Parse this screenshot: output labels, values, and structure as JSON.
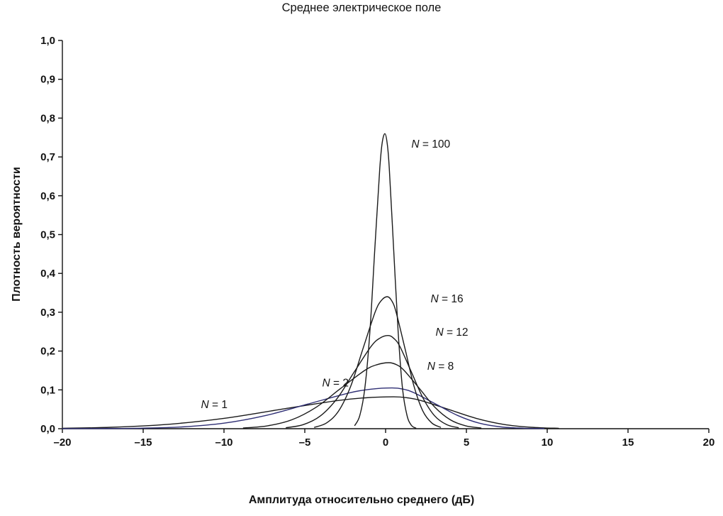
{
  "chart_data": {
    "type": "line",
    "title": "Среднее электрическое поле",
    "xlabel": "Амплитуда относительно среднего (дБ)",
    "ylabel": "Плотность вероятности",
    "xlim": [
      -20,
      20
    ],
    "ylim": [
      0,
      1.0
    ],
    "grid": false,
    "legend_position": "none",
    "axis_color": "#111111",
    "x_ticks": [
      -20,
      -15,
      -10,
      -5,
      0,
      5,
      10,
      15,
      20
    ],
    "x_tick_labels": [
      "–20",
      "–15",
      "–10",
      "–5",
      "0",
      "5",
      "10",
      "15",
      "20"
    ],
    "y_ticks": [
      0,
      0.1,
      0.2,
      0.3,
      0.4,
      0.5,
      0.6,
      0.7,
      0.8,
      0.9,
      1.0
    ],
    "y_tick_labels": [
      "0,0",
      "0,1",
      "0,2",
      "0,3",
      "0,4",
      "0,5",
      "0,6",
      "0,7",
      "0,8",
      "0,9",
      "1,0"
    ],
    "series": [
      {
        "n": "1",
        "label_prefix": "N",
        "label_eq": " = 1",
        "label_x": -10.6,
        "label_y": 0.062,
        "color": "#1a1a1a",
        "peak": 0.082,
        "points": [
          [
            -20,
            0.0011
          ],
          [
            -17,
            0.0036
          ],
          [
            -13.5,
            0.0111
          ],
          [
            -10,
            0.0266
          ],
          [
            -6.5,
            0.0497
          ],
          [
            -3,
            0.0724
          ],
          [
            -1.25,
            0.0795
          ],
          [
            0.5,
            0.082
          ],
          [
            1.35,
            0.0795
          ],
          [
            2.2,
            0.0724
          ],
          [
            3.9,
            0.0497
          ],
          [
            5.6,
            0.0266
          ],
          [
            7.3,
            0.0111
          ],
          [
            9,
            0.0036
          ],
          [
            10.7,
            0.0011
          ]
        ]
      },
      {
        "n": "2",
        "label_prefix": "N",
        "label_eq": " = 2",
        "label_x": -3.1,
        "label_y": 0.118,
        "color": "#2e2e74",
        "peak": 0.105,
        "points": [
          [
            -20,
            0.0001
          ],
          [
            -17.8,
            0.0004
          ],
          [
            -15.2,
            0.0012
          ],
          [
            -12.6,
            0.0046
          ],
          [
            -10,
            0.0142
          ],
          [
            -7.4,
            0.0341
          ],
          [
            -4.8,
            0.0637
          ],
          [
            -2.2,
            0.0927
          ],
          [
            -0.9,
            0.1018
          ],
          [
            0.4,
            0.105
          ],
          [
            1.1,
            0.1018
          ],
          [
            1.75,
            0.0927
          ],
          [
            3.1,
            0.0637
          ],
          [
            4.45,
            0.0341
          ],
          [
            5.8,
            0.0142
          ],
          [
            7.15,
            0.0046
          ],
          [
            8.5,
            0.0012
          ],
          [
            9.8,
            0.0003
          ]
        ]
      },
      {
        "n": "8",
        "label_prefix": "N",
        "label_eq": " = 8",
        "label_x": 3.4,
        "label_y": 0.161,
        "color": "#1a1a1a",
        "peak": 0.17,
        "points": [
          [
            -8.8,
            0.0019
          ],
          [
            -7.3,
            0.0075
          ],
          [
            -5.8,
            0.023
          ],
          [
            -4.3,
            0.0552
          ],
          [
            -2.8,
            0.1031
          ],
          [
            -1.3,
            0.15
          ],
          [
            -0.55,
            0.1648
          ],
          [
            0.2,
            0.17
          ],
          [
            0.68,
            0.1648
          ],
          [
            1.15,
            0.15
          ],
          [
            2.1,
            0.1031
          ],
          [
            3.05,
            0.0552
          ],
          [
            4,
            0.023
          ],
          [
            4.95,
            0.0075
          ],
          [
            5.9,
            0.0019
          ]
        ]
      },
      {
        "n": "12",
        "label_prefix": "N",
        "label_eq": " = 12",
        "label_x": 4.1,
        "label_y": 0.249,
        "color": "#1a1a1a",
        "peak": 0.24,
        "points": [
          [
            -6.15,
            0.0026
          ],
          [
            -5.1,
            0.0105
          ],
          [
            -4.05,
            0.0325
          ],
          [
            -3,
            0.0779
          ],
          [
            -1.95,
            0.1456
          ],
          [
            -0.9,
            0.2118
          ],
          [
            -0.38,
            0.2326
          ],
          [
            0.15,
            0.24
          ],
          [
            0.51,
            0.2326
          ],
          [
            0.88,
            0.2118
          ],
          [
            1.6,
            0.1456
          ],
          [
            2.33,
            0.0779
          ],
          [
            3.05,
            0.0325
          ],
          [
            3.78,
            0.0105
          ],
          [
            4.5,
            0.0026
          ]
        ]
      },
      {
        "n": "16",
        "label_prefix": "N",
        "label_eq": " = 16",
        "label_x": 3.8,
        "label_y": 0.335,
        "color": "#1a1a1a",
        "peak": 0.34,
        "points": [
          [
            -4.4,
            0.0037
          ],
          [
            -3.65,
            0.0149
          ],
          [
            -2.9,
            0.046
          ],
          [
            -2.15,
            0.1104
          ],
          [
            -1.4,
            0.2062
          ],
          [
            -0.65,
            0.3001
          ],
          [
            -0.28,
            0.3295
          ],
          [
            0.1,
            0.34
          ],
          [
            0.38,
            0.3295
          ],
          [
            0.65,
            0.3001
          ],
          [
            1.2,
            0.2062
          ],
          [
            1.75,
            0.1104
          ],
          [
            2.3,
            0.046
          ],
          [
            2.85,
            0.0149
          ],
          [
            3.4,
            0.0037
          ]
        ]
      },
      {
        "n": "100",
        "label_prefix": "N",
        "label_eq": " = 100",
        "label_x": 2.8,
        "label_y": 0.733,
        "color": "#1a1a1a",
        "peak": 0.76,
        "points": [
          [
            -1.91,
            0.0084
          ],
          [
            -1.6,
            0.0334
          ],
          [
            -1.29,
            0.1028
          ],
          [
            -0.98,
            0.2468
          ],
          [
            -0.67,
            0.4609
          ],
          [
            -0.36,
            0.6707
          ],
          [
            -0.21,
            0.7366
          ],
          [
            -0.05,
            0.76
          ],
          [
            0.09,
            0.7366
          ],
          [
            0.23,
            0.6707
          ],
          [
            0.5,
            0.4609
          ],
          [
            0.78,
            0.2468
          ],
          [
            1.05,
            0.1028
          ],
          [
            1.33,
            0.0334
          ],
          [
            1.6,
            0.0084
          ],
          [
            1.87,
            0.0017
          ]
        ]
      }
    ]
  }
}
